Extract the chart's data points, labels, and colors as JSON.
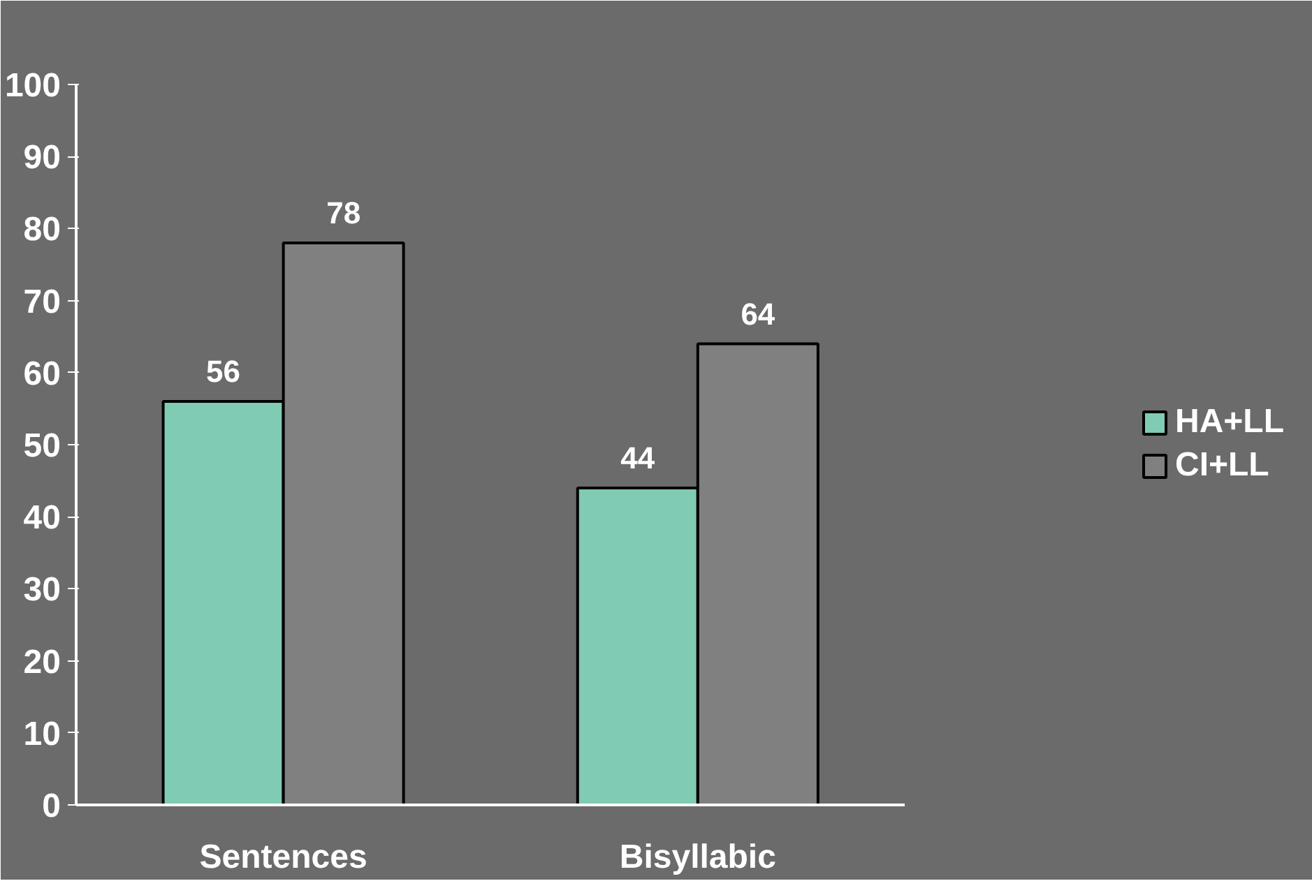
{
  "chart_data": {
    "type": "bar",
    "categories": [
      "Sentences",
      "Bisyllabic"
    ],
    "series": [
      {
        "name": "HA+LL",
        "color": "#80cbb3",
        "values": [
          56,
          44
        ]
      },
      {
        "name": "CI+LL",
        "color": "#808080",
        "values": [
          78,
          64
        ]
      }
    ],
    "ylim": [
      0,
      100
    ],
    "yticks": [
      0,
      10,
      20,
      30,
      40,
      50,
      60,
      70,
      80,
      90,
      100
    ],
    "data_labels": true,
    "legend": "right",
    "grid": false
  }
}
